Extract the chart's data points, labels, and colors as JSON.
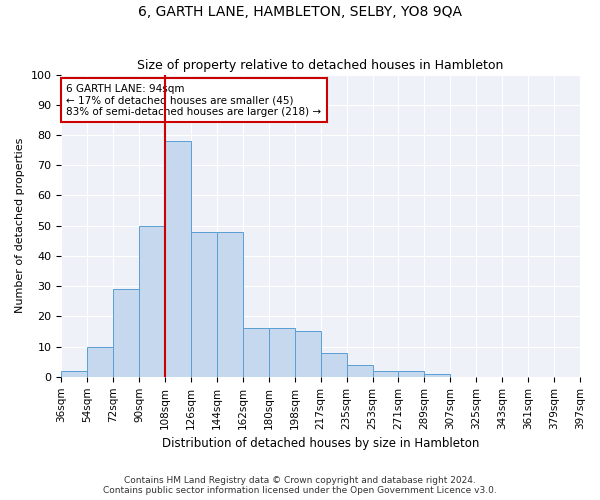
{
  "title": "6, GARTH LANE, HAMBLETON, SELBY, YO8 9QA",
  "subtitle": "Size of property relative to detached houses in Hambleton",
  "xlabel": "Distribution of detached houses by size in Hambleton",
  "ylabel": "Number of detached properties",
  "bar_color": "#c5d8ed",
  "bar_edge_color": "#5a9fd4",
  "background_color": "#eef2f8",
  "grid_color": "#ffffff",
  "bins": [
    "36sqm",
    "54sqm",
    "72sqm",
    "90sqm",
    "108sqm",
    "126sqm",
    "144sqm",
    "162sqm",
    "180sqm",
    "198sqm",
    "217sqm",
    "235sqm",
    "253sqm",
    "271sqm",
    "289sqm",
    "307sqm",
    "325sqm",
    "343sqm",
    "361sqm",
    "379sqm",
    "397sqm"
  ],
  "values": [
    2,
    10,
    29,
    50,
    78,
    48,
    48,
    16,
    16,
    15,
    8,
    4,
    2,
    2,
    1,
    0,
    0,
    0,
    0,
    0
  ],
  "vline_x": 3.5,
  "vline_color": "#cc0000",
  "annotation_text": "6 GARTH LANE: 94sqm\n← 17% of detached houses are smaller (45)\n83% of semi-detached houses are larger (218) →",
  "annotation_box_color": "#ffffff",
  "annotation_box_edge": "#cc0000",
  "ylim": [
    0,
    100
  ],
  "yticks": [
    0,
    10,
    20,
    30,
    40,
    50,
    60,
    70,
    80,
    90,
    100
  ],
  "footnote1": "Contains HM Land Registry data © Crown copyright and database right 2024.",
  "footnote2": "Contains public sector information licensed under the Open Government Licence v3.0."
}
